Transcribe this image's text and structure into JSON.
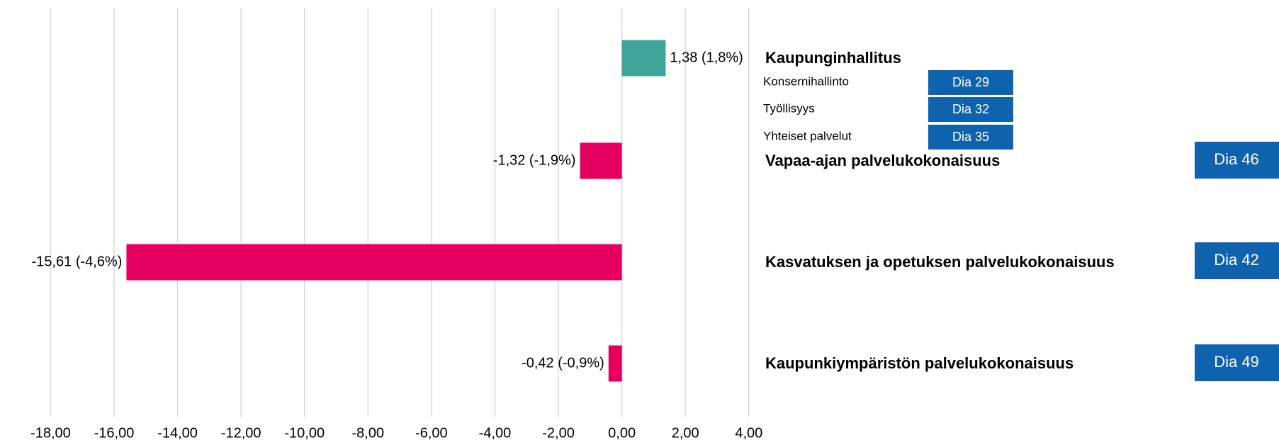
{
  "chart_data": {
    "type": "bar",
    "orientation": "horizontal",
    "categories": [
      "Kaupunginhallitus",
      "Vapaa-ajan palvelukokonaisuus",
      "Kasvatuksen ja opetuksen palvelukokonaisuus",
      "Kaupunkiympäristön palvelukokonaisuus"
    ],
    "values": [
      1.38,
      -1.32,
      -15.61,
      -0.42
    ],
    "value_labels": [
      "1,38 (1,8%)",
      "-1,32 (-1,9%)",
      "-15,61 (-4,6%)",
      "-0,42 (-0,9%)"
    ],
    "colors": [
      "#3fa59b",
      "#e5005f",
      "#e5005f",
      "#e5005f"
    ],
    "xlim": [
      -18,
      4
    ],
    "xticks": [
      {
        "value": -18,
        "label": "-18,00"
      },
      {
        "value": -16,
        "label": "-16,00"
      },
      {
        "value": -14,
        "label": "-14,00"
      },
      {
        "value": -12,
        "label": "-12,00"
      },
      {
        "value": -10,
        "label": "-10,00"
      },
      {
        "value": -8,
        "label": "-8,00"
      },
      {
        "value": -6,
        "label": "-6,00"
      },
      {
        "value": -4,
        "label": "-4,00"
      },
      {
        "value": -2,
        "label": "-2,00"
      },
      {
        "value": 0,
        "label": "0,00"
      },
      {
        "value": 2,
        "label": "2,00"
      },
      {
        "value": 4,
        "label": "4,00"
      }
    ],
    "grid": true
  },
  "navigation": [
    {
      "subitems": [
        {
          "name": "Konsernihallinto",
          "link": "Dia 29"
        },
        {
          "name": "Työllisyys",
          "link": "Dia 32"
        },
        {
          "name": "Yhteiset palvelut",
          "link": "Dia 35"
        }
      ]
    },
    {
      "link": "Dia 46"
    },
    {
      "link": "Dia 42"
    },
    {
      "link": "Dia 49"
    }
  ]
}
